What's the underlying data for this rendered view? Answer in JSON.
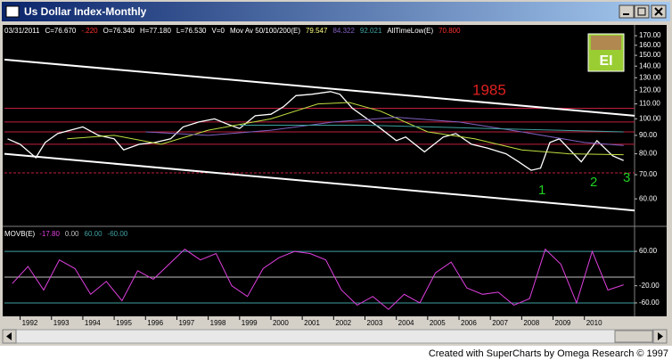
{
  "window": {
    "title": "Us Dollar Index-Monthly"
  },
  "footer": "Created with SuperCharts by Omega Research © 1997",
  "chart_data": [
    {
      "type": "line",
      "header": [
        {
          "text": "03/31/2011",
          "color": "#ffffff"
        },
        {
          "text": "C=76.670",
          "color": "#ffffff"
        },
        {
          "text": "-.220",
          "color": "#ff3030"
        },
        {
          "text": "O=76.340",
          "color": "#ffffff"
        },
        {
          "text": "H=77.180",
          "color": "#ffffff"
        },
        {
          "text": "L=76.530",
          "color": "#ffffff"
        },
        {
          "text": "V=0",
          "color": "#ffffff"
        },
        {
          "text": "Mov Av 50/100/200(E)",
          "color": "#ffffff"
        },
        {
          "text": "79.547",
          "color": "#ffff80"
        },
        {
          "text": "84.322",
          "color": "#8060c0"
        },
        {
          "text": "92.021",
          "color": "#40a0a0"
        },
        {
          "text": "AllTimeLow(E)",
          "color": "#ffffff"
        },
        {
          "text": "70.800",
          "color": "#ff3030"
        }
      ],
      "badge": "EI",
      "annotations": [
        {
          "text": "1985",
          "color": "#e02020"
        },
        {
          "text": "1",
          "color": "#20d020"
        },
        {
          "text": "2",
          "color": "#20d020"
        },
        {
          "text": "3",
          "color": "#20d020"
        }
      ],
      "log_scale": true,
      "xlim": [
        1991.5,
        2011.6
      ],
      "xticks": [
        1992,
        1993,
        1994,
        1995,
        1996,
        1997,
        1998,
        1999,
        2000,
        2001,
        2002,
        2003,
        2004,
        2005,
        2006,
        2007,
        2008,
        2009,
        2010
      ],
      "ylim": [
        51.5,
        177
      ],
      "yticks": [
        {
          "value": 60,
          "label": "60.00"
        },
        {
          "value": 70,
          "label": "70.00"
        },
        {
          "value": 80,
          "label": "80.00"
        },
        {
          "value": 90,
          "label": "90.00"
        },
        {
          "value": 100,
          "label": "100.00"
        },
        {
          "value": 110,
          "label": "110.00"
        },
        {
          "value": 120,
          "label": "120.00"
        },
        {
          "value": 130,
          "label": "130.00"
        },
        {
          "value": 140,
          "label": "140.00"
        },
        {
          "value": 150,
          "label": "150.00"
        },
        {
          "value": 160,
          "label": "160.00"
        },
        {
          "value": 170,
          "label": "170.00"
        }
      ],
      "levels": [
        {
          "value": 107,
          "color": "#c02040"
        },
        {
          "value": 98,
          "color": "#c02040"
        },
        {
          "value": 92,
          "color": "#c02040"
        },
        {
          "value": 85,
          "color": "#c02040"
        },
        {
          "value": 70.8,
          "color": "#c02040"
        }
      ],
      "trendlines": [
        {
          "start": [
            1991.5,
            146
          ],
          "end": [
            2011.6,
            102
          ],
          "color": "#ffffff"
        },
        {
          "start": [
            1991.5,
            80
          ],
          "end": [
            2011.6,
            55.7
          ],
          "color": "#ffffff"
        }
      ],
      "series": [
        {
          "color": "#ffffff",
          "x": [
            1991.6,
            1992.0,
            1992.5,
            1992.8,
            1993.2,
            1993.6,
            1994.0,
            1994.5,
            1995.0,
            1995.3,
            1995.8,
            1996.3,
            1996.8,
            1997.2,
            1997.7,
            1998.2,
            1998.7,
            1999.0,
            1999.5,
            2000.0,
            2000.4,
            2000.8,
            2001.3,
            2001.9,
            2002.2,
            2002.6,
            2003.0,
            2003.5,
            2004.0,
            2004.3,
            2004.9,
            2005.5,
            2005.9,
            2006.4,
            2006.9,
            2007.5,
            2007.9,
            2008.3,
            2008.6,
            2008.9,
            2009.2,
            2009.9,
            2010.4,
            2010.9,
            2011.25
          ],
          "values": [
            88,
            85,
            78,
            86,
            91,
            93,
            95,
            90,
            88,
            82,
            85,
            86,
            88,
            95,
            98,
            100,
            96,
            94,
            102,
            103,
            108,
            116,
            117,
            119,
            117,
            107,
            101,
            94,
            87,
            89,
            81,
            89,
            91,
            85,
            83,
            80,
            76,
            72,
            73,
            86,
            88,
            76,
            87,
            79,
            76.67
          ]
        },
        {
          "color": "#c0e040",
          "x": [
            1993.5,
            1995,
            1996.5,
            1998,
            2000,
            2001.5,
            2002.5,
            2003.5,
            2005,
            2006.5,
            2008,
            2009.5,
            2011.25
          ],
          "values": [
            88,
            90,
            85,
            93,
            100,
            110,
            111,
            105,
            92,
            88,
            82,
            80,
            79.547
          ]
        },
        {
          "color": "#8060c0",
          "x": [
            1996,
            1998,
            2000,
            2002,
            2004,
            2006,
            2008,
            2010,
            2011.25
          ],
          "values": [
            92,
            90,
            93,
            98,
            101,
            98,
            92,
            86,
            84.322
          ]
        },
        {
          "color": "#40a0a0",
          "x": [
            1999,
            2003,
            2007,
            2011.25
          ],
          "values": [
            96,
            96,
            94,
            92.021
          ]
        }
      ]
    },
    {
      "type": "line",
      "title": "MOVB(E)",
      "header": [
        {
          "text": "-17.80",
          "color": "#e040e0"
        },
        {
          "text": "0.00",
          "color": "#c0c0c0"
        },
        {
          "text": "60.00",
          "color": "#40a0a0"
        },
        {
          "text": "-60.00",
          "color": "#40a0a0"
        }
      ],
      "xlim": [
        1991.5,
        2011.6
      ],
      "ylim": [
        -85,
        112
      ],
      "yticks": [
        {
          "value": 60,
          "label": "60.00"
        },
        {
          "value": -20,
          "label": "-20.00"
        },
        {
          "value": -60,
          "label": "-60.00"
        }
      ],
      "levels": [
        {
          "value": 60,
          "color": "#40a0a0"
        },
        {
          "value": 0,
          "color": "#c0c0c0"
        },
        {
          "value": -60,
          "color": "#40a0a0"
        }
      ],
      "series": [
        {
          "color": "#e040e0",
          "x": [
            1991.75,
            1992.25,
            1992.75,
            1993.25,
            1993.75,
            1994.25,
            1994.75,
            1995.25,
            1995.75,
            1996.25,
            1996.75,
            1997.25,
            1997.75,
            1998.25,
            1998.75,
            1999.25,
            1999.75,
            2000.25,
            2000.75,
            2001.25,
            2001.75,
            2002.25,
            2002.75,
            2003.25,
            2003.75,
            2004.25,
            2004.75,
            2005.25,
            2005.75,
            2006.25,
            2006.75,
            2007.25,
            2007.75,
            2008.25,
            2008.75,
            2009.25,
            2009.75,
            2010.25,
            2010.75,
            2011.25
          ],
          "values": [
            -15,
            25,
            -30,
            40,
            20,
            -40,
            -10,
            -55,
            15,
            -5,
            30,
            65,
            40,
            55,
            -20,
            -45,
            20,
            45,
            60,
            55,
            40,
            -30,
            -65,
            -45,
            -75,
            -40,
            -60,
            10,
            35,
            -25,
            -40,
            -35,
            -65,
            -50,
            65,
            30,
            -60,
            60,
            -30,
            -17.8
          ]
        }
      ]
    }
  ]
}
